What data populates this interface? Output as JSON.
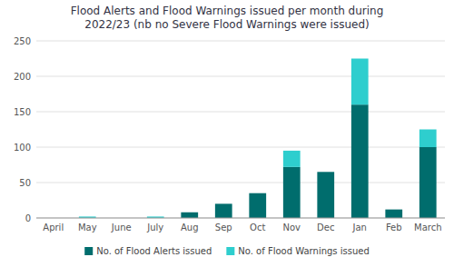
{
  "chart_data": {
    "type": "bar",
    "stacked": true,
    "title": "Flood Alerts and Flood Warnings issued per month during\n2022/23 (nb no Severe Flood Warnings were issued)",
    "categories": [
      "April",
      "May",
      "June",
      "July",
      "Aug",
      "Sep",
      "Oct",
      "Nov",
      "Dec",
      "Jan",
      "Feb",
      "March"
    ],
    "series": [
      {
        "name": "No. of Flood Alerts issued",
        "color": "#006d6d",
        "values": [
          0,
          0,
          0,
          0,
          8,
          20,
          35,
          72,
          65,
          160,
          12,
          100
        ]
      },
      {
        "name": "No. of Flood Warnings issued",
        "color": "#2ecece",
        "values": [
          0,
          2,
          0,
          2,
          0,
          0,
          0,
          23,
          0,
          65,
          0,
          25
        ]
      }
    ],
    "ylim": [
      0,
      250
    ],
    "yticks": [
      0,
      50,
      100,
      150,
      200,
      250
    ],
    "grid": true,
    "legend": "bottom"
  }
}
